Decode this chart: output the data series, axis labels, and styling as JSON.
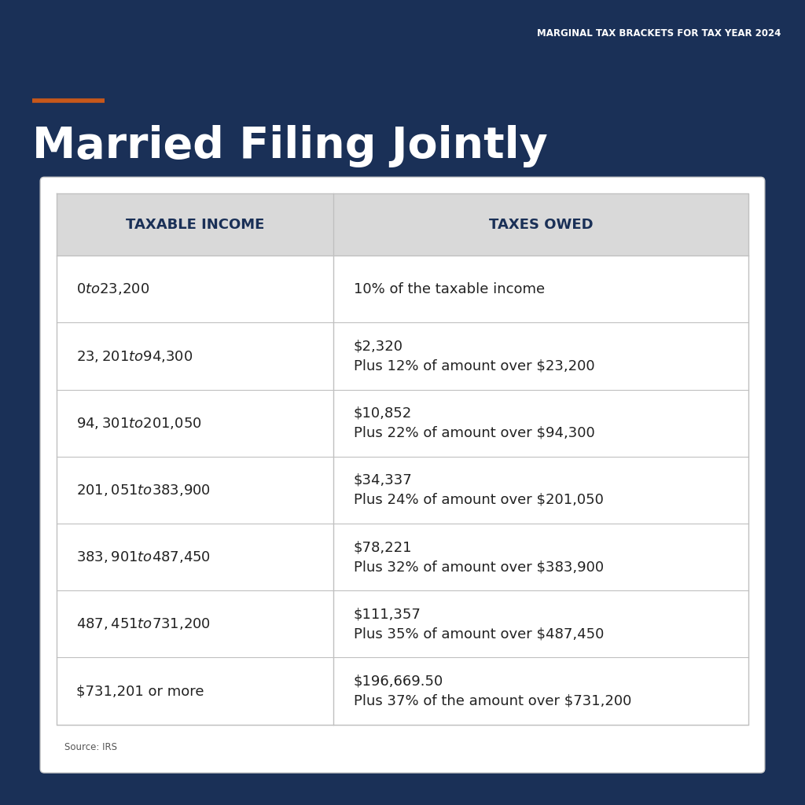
{
  "background_color": "#1a3057",
  "subtitle": "MARGINAL TAX BRACKETS FOR TAX YEAR 2024",
  "subtitle_color": "#ffffff",
  "orange_bar_color": "#c8581a",
  "title": "Married Filing Jointly",
  "title_color": "#ffffff",
  "table_bg": "#ffffff",
  "header_bg": "#d9d9d9",
  "header_text_color": "#1a3057",
  "col1_header": "TAXABLE INCOME",
  "col2_header": "TAXES OWED",
  "row_line_color": "#c0c0c0",
  "source_text": "Source: IRS",
  "rows": [
    {
      "income": "$0 to $23,200",
      "taxes": "10% of the taxable income"
    },
    {
      "income": "$23,201 to $94,300",
      "taxes": "$2,320\nPlus 12% of amount over $23,200"
    },
    {
      "income": "$94,301 to $201,050",
      "taxes": "$10,852\nPlus 22% of amount over $94,300"
    },
    {
      "income": "$201,051 to $383,900",
      "taxes": "$34,337\nPlus 24% of amount over $201,050"
    },
    {
      "income": "$383,901 to $487,450",
      "taxes": "$78,221\nPlus 32% of amount over $383,900"
    },
    {
      "income": "$487,451 to $731,200",
      "taxes": "$111,357\nPlus 35% of amount over $487,450"
    },
    {
      "income": "$731,201 or more",
      "taxes": "$196,669.50\nPlus 37% of the amount over $731,200"
    }
  ],
  "cell_text_color": "#222222",
  "cell_fontsize": 13,
  "header_fontsize": 13
}
